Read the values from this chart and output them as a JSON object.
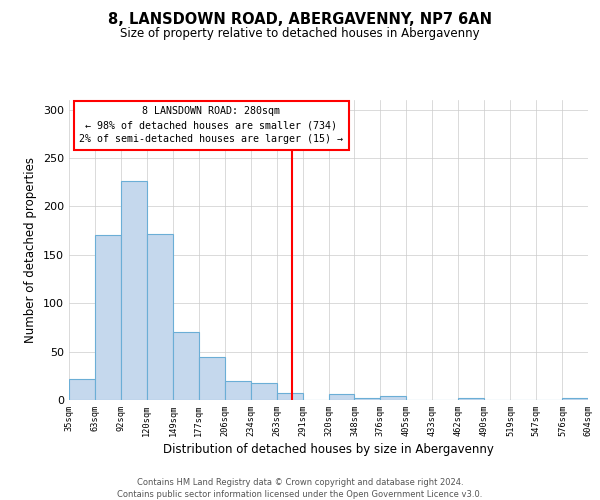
{
  "title": "8, LANSDOWN ROAD, ABERGAVENNY, NP7 6AN",
  "subtitle": "Size of property relative to detached houses in Abergavenny",
  "xlabel": "Distribution of detached houses by size in Abergavenny",
  "ylabel": "Number of detached properties",
  "bin_edges": [
    35,
    63,
    92,
    120,
    149,
    177,
    206,
    234,
    263,
    291,
    320,
    348,
    376,
    405,
    433,
    462,
    490,
    519,
    547,
    576,
    604
  ],
  "bar_heights": [
    22,
    170,
    226,
    172,
    70,
    44,
    20,
    18,
    7,
    0,
    6,
    2,
    4,
    0,
    0,
    2,
    0,
    0,
    0,
    2
  ],
  "bar_color": "#c5d8ed",
  "bar_edge_color": "#6baed6",
  "vline_x": 280,
  "vline_color": "red",
  "annotation_title": "8 LANSDOWN ROAD: 280sqm",
  "annotation_line1": "← 98% of detached houses are smaller (734)",
  "annotation_line2": "2% of semi-detached houses are larger (15) →",
  "ylim": [
    0,
    310
  ],
  "yticks": [
    0,
    50,
    100,
    150,
    200,
    250,
    300
  ],
  "footer_line1": "Contains HM Land Registry data © Crown copyright and database right 2024.",
  "footer_line2": "Contains public sector information licensed under the Open Government Licence v3.0.",
  "background_color": "#ffffff",
  "grid_color": "#cccccc"
}
